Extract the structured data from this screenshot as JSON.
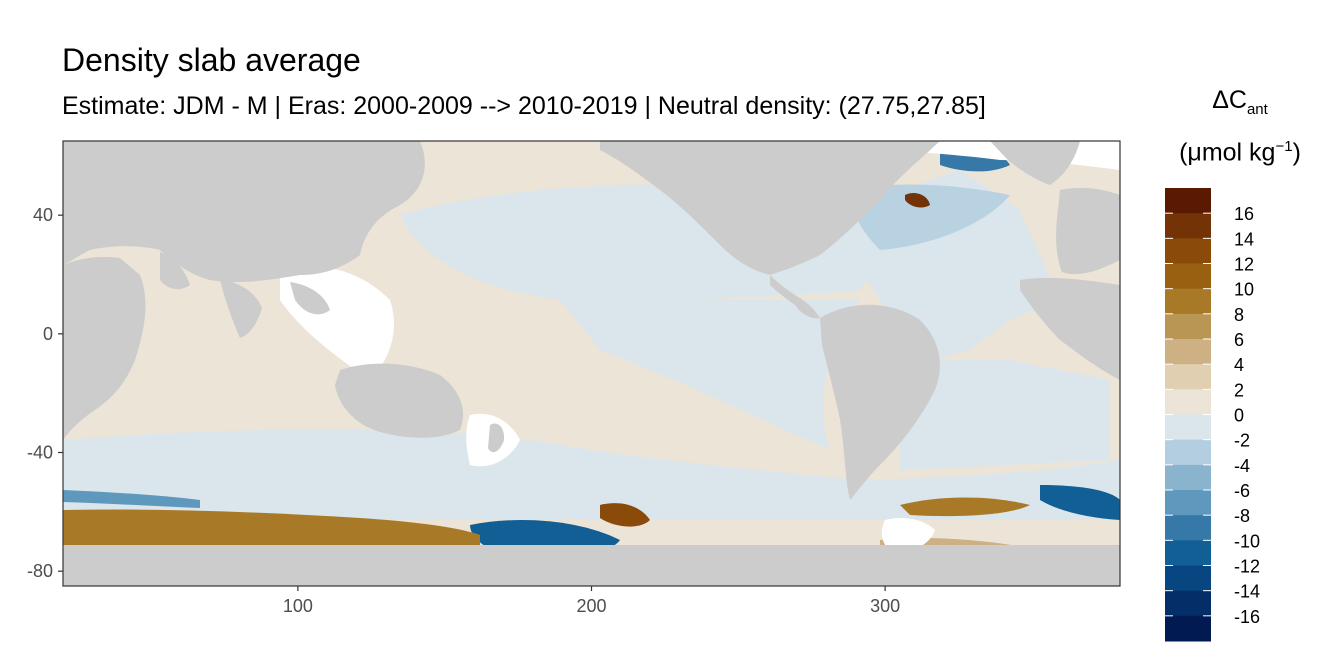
{
  "title": "Density slab average",
  "subtitle": "Estimate: JDM - M | Eras: 2000-2009 --> 2010-2019 | Neutral density: (27.75,27.85]",
  "legend": {
    "title_main": "ΔC",
    "title_sub": "ant",
    "unit_open": "(μmol kg",
    "unit_sup": "−1",
    "unit_close": ")",
    "labels": [
      "16",
      "14",
      "12",
      "10",
      "8",
      "6",
      "4",
      "2",
      "0",
      "-2",
      "-4",
      "-6",
      "-8",
      "-10",
      "-12",
      "-14",
      "-16"
    ],
    "colors": [
      "#5a1a02",
      "#733306",
      "#8a4a0a",
      "#9a6012",
      "#a87a28",
      "#b99654",
      "#cdb185",
      "#e0cfb0",
      "#ece4d6",
      "#dbe6ec",
      "#b3cee0",
      "#8ab4ce",
      "#5f98bd",
      "#3679a8",
      "#125f96",
      "#074680",
      "#032e68",
      "#011a52"
    ]
  },
  "chart_data": {
    "type": "heatmap",
    "xlim": [
      20,
      380
    ],
    "ylim": [
      -85,
      65
    ],
    "x_ticks": [
      "100",
      "200",
      "300"
    ],
    "y_ticks": [
      "40",
      "0",
      "-40",
      "-80"
    ],
    "colors": {
      "land": "#cccccc",
      "missing": "#ffffff",
      "background_warm": "#ece4d6",
      "background_cool": "#dbe6ec"
    }
  }
}
